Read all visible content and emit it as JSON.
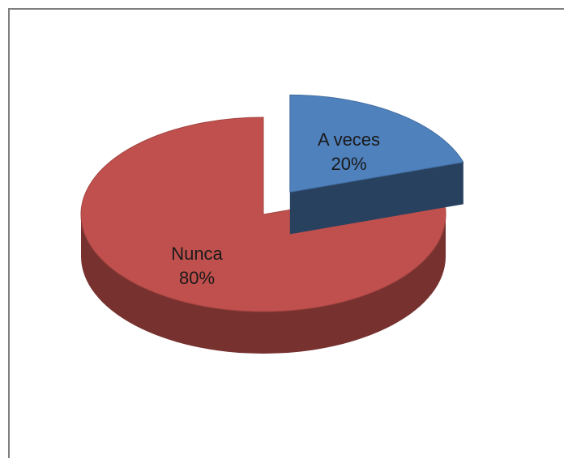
{
  "chart_data": {
    "type": "pie",
    "title": "",
    "exploded": true,
    "three_d": true,
    "slices": [
      {
        "label": "A veces",
        "percent_label": "20%",
        "value": 20,
        "color": "#4f81bd"
      },
      {
        "label": "Nunca",
        "percent_label": "80%",
        "value": 80,
        "color": "#c0504d"
      }
    ]
  }
}
